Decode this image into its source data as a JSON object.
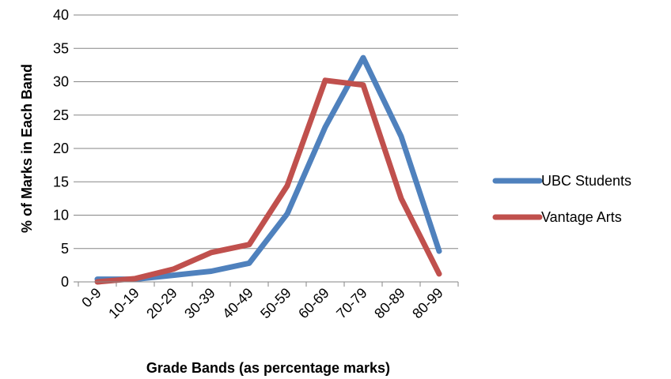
{
  "chart_data": {
    "type": "line",
    "title": "",
    "xlabel": "Grade Bands (as percentage marks)",
    "ylabel": "% of  Marks in Each Band",
    "categories": [
      "0-9",
      "10-19",
      "20-29",
      "30-39",
      "40-49",
      "50-59",
      "60-69",
      "70-79",
      "80-89",
      "80-99"
    ],
    "ylim": [
      0,
      40
    ],
    "yticks": [
      0,
      5,
      10,
      15,
      20,
      25,
      30,
      35,
      40
    ],
    "grid": true,
    "legend_position": "right",
    "series": [
      {
        "name": "UBC Students",
        "color": "#4F81BD",
        "values": [
          0.4,
          0.4,
          1.0,
          1.6,
          2.8,
          10.2,
          23.2,
          33.6,
          21.8,
          4.6
        ]
      },
      {
        "name": "Vantage Arts",
        "color": "#C0504D",
        "values": [
          0.0,
          0.5,
          1.9,
          4.4,
          5.6,
          14.4,
          30.2,
          29.5,
          12.5,
          1.2
        ]
      }
    ]
  }
}
